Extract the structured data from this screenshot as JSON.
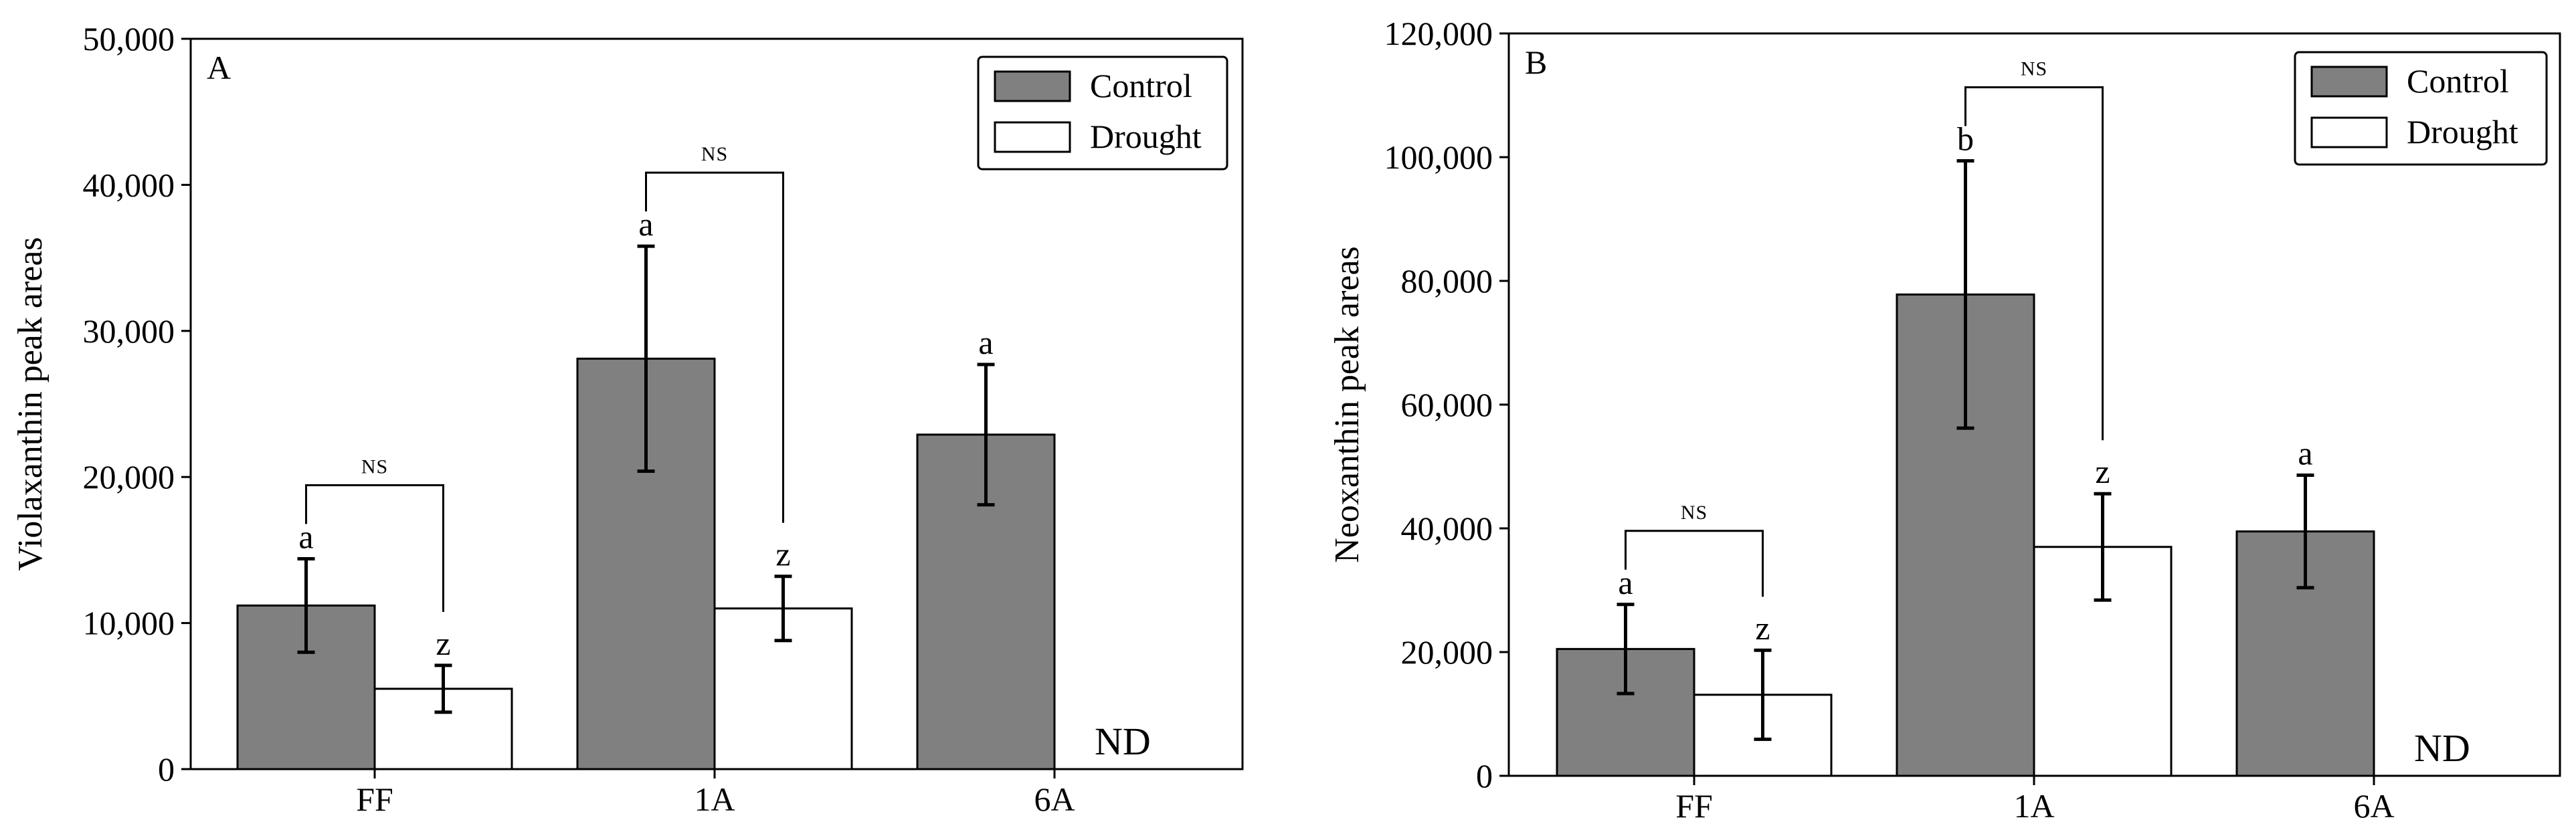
{
  "chart_data": [
    {
      "panel": "A",
      "type": "bar",
      "ylabel": "Violaxanthin peak areas",
      "ylim": [
        0,
        50000
      ],
      "yticks": [
        0,
        10000,
        20000,
        30000,
        40000,
        50000
      ],
      "ytick_labels": [
        "0",
        "10,000",
        "20,000",
        "30,000",
        "40,000",
        "50,000"
      ],
      "categories": [
        "FF",
        "1A",
        "6A"
      ],
      "legend": {
        "position": "top-right",
        "entries": [
          "Control",
          "Drought"
        ]
      },
      "series": [
        {
          "name": "Control",
          "color": "#808080",
          "values": [
            11200,
            28100,
            22900
          ],
          "errors": [
            3200,
            7700,
            4800
          ],
          "letters": [
            "a",
            "a",
            "a"
          ]
        },
        {
          "name": "Drought",
          "color": "#ffffff",
          "values": [
            5500,
            11000,
            0
          ],
          "errors": [
            1600,
            2200,
            0
          ],
          "letters": [
            "z",
            "z",
            ""
          ]
        }
      ],
      "nd_label": "ND",
      "ns_label": "NS",
      "ns_brackets": [
        0,
        1
      ]
    },
    {
      "panel": "B",
      "type": "bar",
      "ylabel": "Neoxanthin peak areas",
      "ylim": [
        0,
        120000
      ],
      "yticks": [
        0,
        20000,
        40000,
        60000,
        80000,
        100000,
        120000
      ],
      "ytick_labels": [
        "0",
        "20,000",
        "40,000",
        "60,000",
        "80,000",
        "100,000",
        "120,000"
      ],
      "categories": [
        "FF",
        "1A",
        "6A"
      ],
      "legend": {
        "position": "top-right",
        "entries": [
          "Control",
          "Drought"
        ]
      },
      "series": [
        {
          "name": "Control",
          "color": "#808080",
          "values": [
            20500,
            77800,
            39500
          ],
          "errors": [
            7200,
            21600,
            9100
          ],
          "letters": [
            "a",
            "b",
            "a"
          ]
        },
        {
          "name": "Drought",
          "color": "#ffffff",
          "values": [
            13100,
            37000,
            0
          ],
          "errors": [
            7200,
            8600,
            0
          ],
          "letters": [
            "z",
            "z",
            ""
          ]
        }
      ],
      "nd_label": "ND",
      "ns_label": "NS",
      "ns_brackets": [
        0,
        1
      ]
    }
  ]
}
